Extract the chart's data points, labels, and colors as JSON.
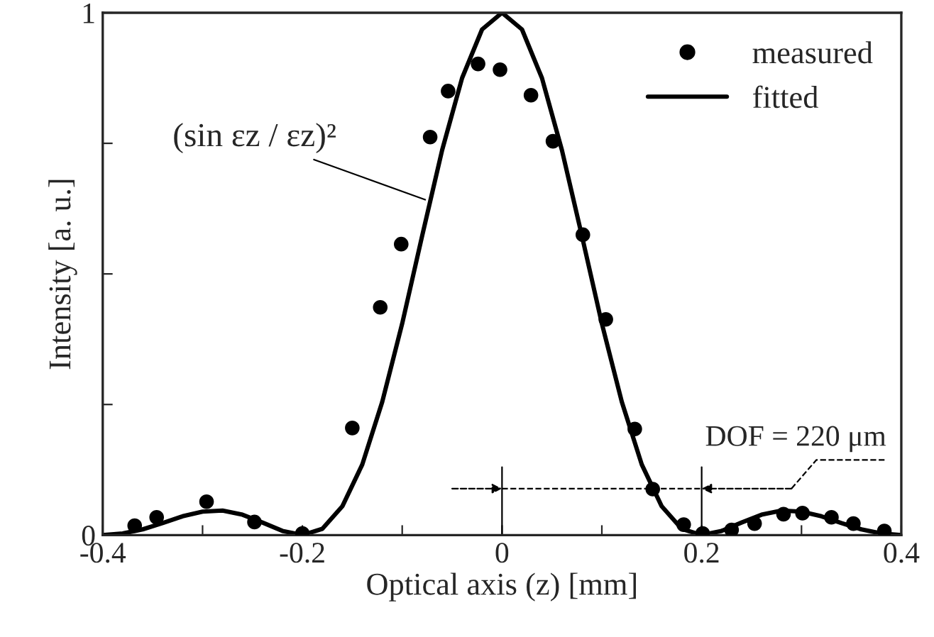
{
  "chart_data": {
    "type": "scatter",
    "xlabel": "Optical axis (z) [mm]",
    "ylabel": "Intensity [a. u.]",
    "xlim": [
      -0.4,
      0.4
    ],
    "ylim": [
      0,
      1
    ],
    "xticks": [
      -0.4,
      {
        "value": -0.3,
        "label": null
      },
      -0.2,
      {
        "value": -0.1,
        "label": null
      },
      0,
      {
        "value": 0.1,
        "label": null
      },
      0.2,
      {
        "value": 0.3,
        "label": null
      },
      0.4
    ],
    "yticks": [
      0,
      {
        "value": 0.25,
        "label": null
      },
      {
        "value": 0.5,
        "label": null
      },
      {
        "value": 0.75,
        "label": null
      },
      1
    ],
    "series": [
      {
        "name": "measured",
        "marker": "circle",
        "color": "#000000",
        "x": [
          -0.368,
          -0.346,
          -0.296,
          -0.248,
          -0.2,
          -0.15,
          -0.122,
          -0.101,
          -0.072,
          -0.054,
          -0.024,
          -0.002,
          0.029,
          0.051,
          0.081,
          0.104,
          0.133,
          0.151,
          0.182,
          0.201,
          0.23,
          0.253,
          0.282,
          0.301,
          0.33,
          0.352,
          0.383
        ],
        "values": [
          0.018,
          0.034,
          0.064,
          0.025,
          0.003,
          0.205,
          0.436,
          0.557,
          0.762,
          0.85,
          0.902,
          0.891,
          0.842,
          0.754,
          0.575,
          0.413,
          0.203,
          0.088,
          0.02,
          0.003,
          0.01,
          0.022,
          0.04,
          0.042,
          0.034,
          0.022,
          0.008
        ]
      },
      {
        "name": "fitted",
        "type": "line",
        "line_style": "solid",
        "color": "#000000",
        "x": [
          -0.4,
          -0.38,
          -0.36,
          -0.34,
          -0.32,
          -0.3,
          -0.28,
          -0.26,
          -0.24,
          -0.22,
          -0.2,
          -0.18,
          -0.16,
          -0.14,
          -0.12,
          -0.1,
          -0.08,
          -0.06,
          -0.04,
          -0.02,
          0,
          0.02,
          0.04,
          0.06,
          0.08,
          0.1,
          0.12,
          0.14,
          0.16,
          0.18,
          0.2,
          0.22,
          0.24,
          0.26,
          0.28,
          0.3,
          0.32,
          0.34,
          0.36,
          0.38,
          0.4
        ],
        "values": [
          0,
          0.003,
          0.011,
          0.023,
          0.036,
          0.045,
          0.047,
          0.039,
          0.024,
          0.008,
          0,
          0.012,
          0.055,
          0.135,
          0.255,
          0.405,
          0.573,
          0.737,
          0.875,
          0.968,
          1,
          0.968,
          0.875,
          0.737,
          0.573,
          0.405,
          0.255,
          0.135,
          0.055,
          0.012,
          0,
          0.008,
          0.024,
          0.039,
          0.047,
          0.045,
          0.036,
          0.023,
          0.011,
          0.003,
          0
        ]
      }
    ],
    "annotations": [
      {
        "text": "(sin εz / εz)²",
        "x": -0.077,
        "y": 0.642
      },
      "DOF = 220 μm"
    ],
    "ref_lines": [
      {
        "axis": "x",
        "value": 0
      },
      {
        "axis": "x",
        "value": 0.2
      }
    ],
    "legend": "top right",
    "grid": false
  }
}
